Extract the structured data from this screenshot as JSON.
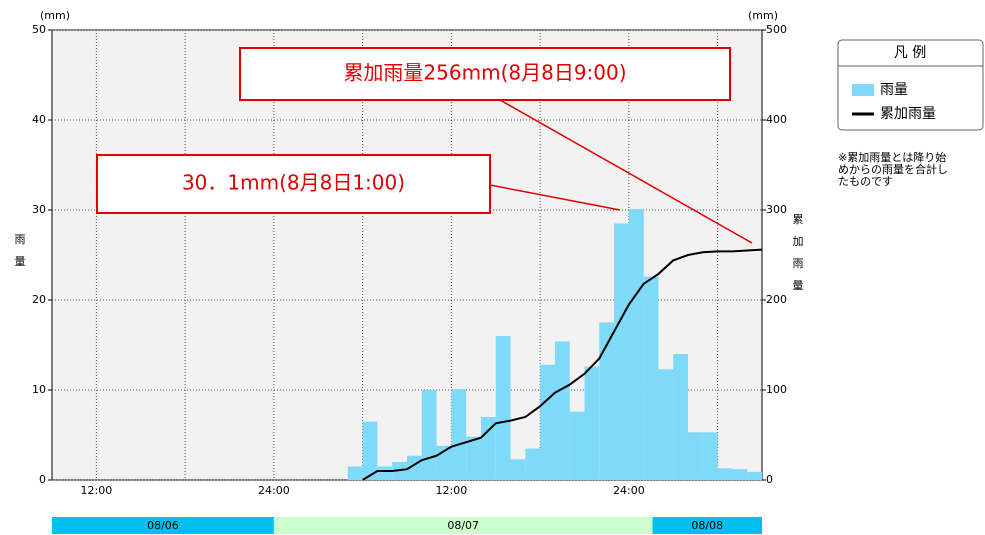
{
  "chart_data": {
    "type": "bar-line",
    "x": [
      0,
      1,
      2,
      3,
      4,
      5,
      6,
      7,
      8,
      9,
      10,
      11,
      12,
      13,
      14,
      15,
      16,
      17,
      18,
      19,
      20,
      21,
      22,
      23,
      24,
      25,
      26,
      27,
      28,
      29,
      30,
      31,
      32,
      33,
      34,
      35,
      36,
      37,
      38,
      39,
      40,
      41,
      42,
      43,
      44,
      45,
      46,
      47
    ],
    "xlim": [
      0,
      48
    ],
    "xticks": [
      {
        "value": 3,
        "label": "12:00"
      },
      {
        "value": 9,
        "label": null
      },
      {
        "value": 15,
        "label": "24:00"
      },
      {
        "value": 21,
        "label": null
      },
      {
        "value": 27,
        "label": "12:00"
      },
      {
        "value": 33,
        "label": null
      },
      {
        "value": 39,
        "label": "24:00"
      },
      {
        "value": 45,
        "label": null
      }
    ],
    "ylim": [
      0,
      50
    ],
    "yticks": [
      0,
      10,
      20,
      30,
      40,
      50
    ],
    "y2lim": [
      0,
      500
    ],
    "y2ticks": [
      0,
      100,
      200,
      300,
      400,
      500
    ],
    "ylabel": "雨量",
    "y2label": "累加雨量",
    "yunit": "(mm)",
    "y2unit": "(mm)",
    "grid": true,
    "series": [
      {
        "name": "雨量",
        "color": "#7fd9f9",
        "kind": "bar",
        "values": [
          0,
          0,
          0,
          0,
          0,
          0,
          0,
          0,
          0,
          0,
          0,
          0,
          0,
          0,
          0,
          0,
          0,
          0,
          0,
          0,
          1.5,
          6.5,
          1.5,
          2,
          2.7,
          10,
          3.8,
          10.1,
          4.8,
          7,
          16,
          2.3,
          3.5,
          12.8,
          15.4,
          7.6,
          12.6,
          17.5,
          28.5,
          30.1,
          22.6,
          12.3,
          14,
          5.3,
          5.3,
          1.3,
          1.2,
          0.9
        ]
      },
      {
        "name": "累加雨量",
        "color": "#000000",
        "kind": "line",
        "axis": "y2",
        "values": [
          null,
          null,
          null,
          null,
          null,
          null,
          null,
          null,
          null,
          null,
          null,
          null,
          null,
          null,
          null,
          null,
          null,
          null,
          null,
          null,
          0,
          10,
          10,
          12,
          22,
          27,
          37,
          42,
          47,
          63,
          66,
          70,
          82,
          97,
          106,
          118,
          135,
          165,
          195,
          218,
          229,
          244,
          250,
          253,
          254,
          254,
          255,
          256
        ]
      }
    ],
    "legend_title": "凡 例",
    "note": [
      "※累加雨量とは降り始",
      "めからの雨量を合計し",
      "たものです"
    ],
    "annotations": [
      "累加雨量256mm(8月8日9:00)",
      "30．1mm(8月8日1:00)"
    ],
    "date_bands": [
      {
        "label": "08/06",
        "start": 0,
        "end": 15
      },
      {
        "label": "08/07",
        "start": 15,
        "end": 40.6
      },
      {
        "label": "08/08",
        "start": 40.6,
        "end": 48
      }
    ]
  }
}
